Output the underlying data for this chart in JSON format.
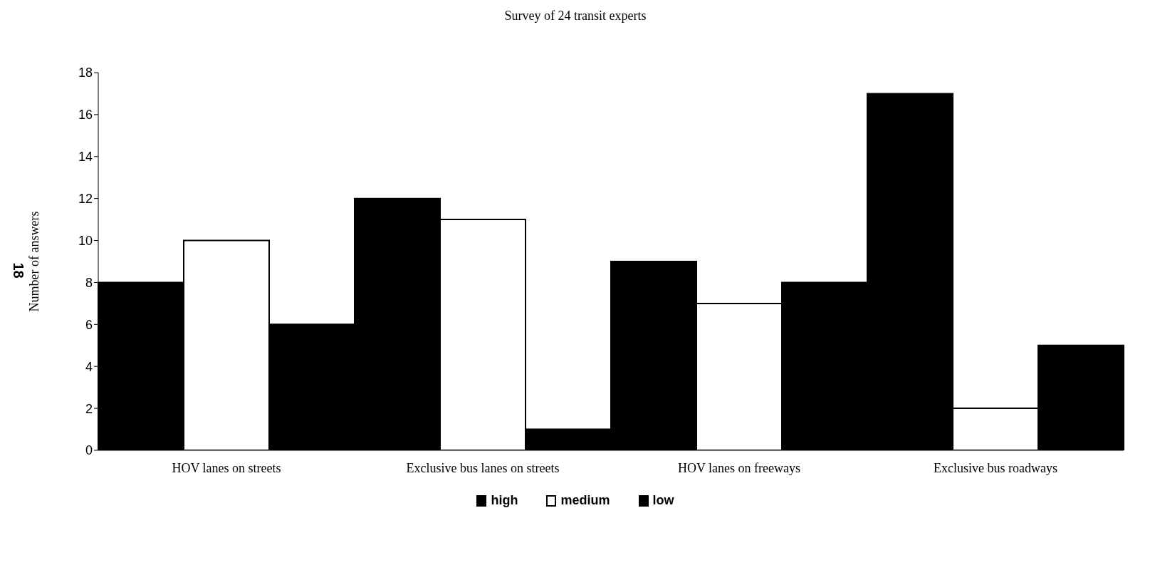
{
  "chart_data": {
    "type": "bar",
    "title": "Survey of 24 transit experts",
    "ylabel": "Number of answers",
    "categories": [
      "HOV lanes on streets",
      "Exclusive bus lanes on streets",
      "HOV lanes on freeways",
      "Exclusive bus roadways"
    ],
    "series": [
      {
        "name": "high",
        "color": "#000000",
        "values": [
          8,
          12,
          9,
          17
        ]
      },
      {
        "name": "medium",
        "color": "#ffffff",
        "values": [
          10,
          11,
          7,
          2
        ]
      },
      {
        "name": "low",
        "color": "#000000",
        "values": [
          6,
          1,
          8,
          5
        ]
      }
    ],
    "ylim": [
      0,
      18
    ],
    "yticks": [
      0,
      2,
      4,
      6,
      8,
      10,
      12,
      14,
      16,
      18
    ],
    "grid": false,
    "legend": "bottom",
    "annotations": [
      "18"
    ]
  }
}
